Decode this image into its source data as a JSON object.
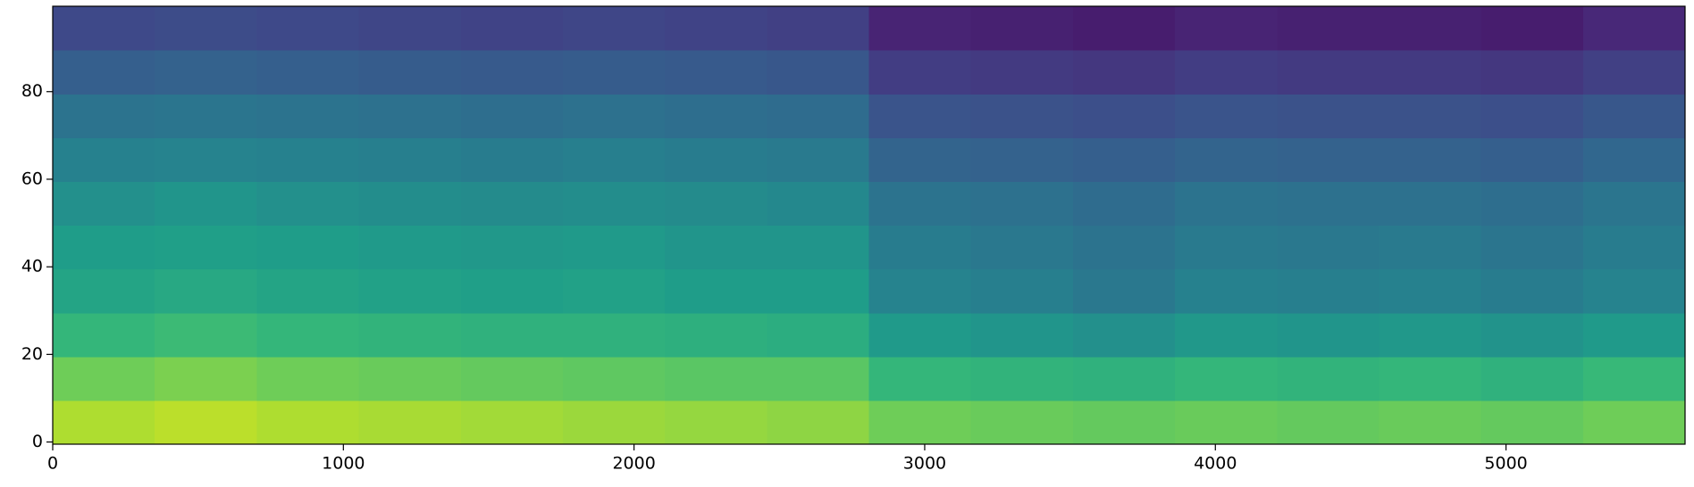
{
  "chart_data": {
    "type": "heatmap",
    "colormap": "viridis",
    "xlim": [
      0,
      5616
    ],
    "ylim": [
      -0.5,
      99.5
    ],
    "xticks": [
      0,
      1000,
      2000,
      3000,
      4000,
      5000
    ],
    "yticks": [
      0,
      20,
      40,
      60,
      80
    ],
    "z": [
      [
        0.88,
        0.9,
        0.88,
        0.87,
        0.86,
        0.85,
        0.84,
        0.83,
        0.78,
        0.77,
        0.76,
        0.77,
        0.76,
        0.77,
        0.76,
        0.78
      ],
      [
        0.78,
        0.8,
        0.78,
        0.77,
        0.76,
        0.75,
        0.74,
        0.74,
        0.66,
        0.65,
        0.64,
        0.66,
        0.65,
        0.66,
        0.64,
        0.67
      ],
      [
        0.66,
        0.68,
        0.66,
        0.65,
        0.64,
        0.64,
        0.63,
        0.62,
        0.54,
        0.52,
        0.5,
        0.53,
        0.52,
        0.53,
        0.51,
        0.54
      ],
      [
        0.58,
        0.6,
        0.58,
        0.57,
        0.56,
        0.57,
        0.55,
        0.55,
        0.45,
        0.43,
        0.4,
        0.44,
        0.43,
        0.44,
        0.42,
        0.45
      ],
      [
        0.55,
        0.56,
        0.55,
        0.54,
        0.53,
        0.54,
        0.52,
        0.52,
        0.42,
        0.4,
        0.38,
        0.41,
        0.4,
        0.41,
        0.39,
        0.42
      ],
      [
        0.5,
        0.52,
        0.5,
        0.49,
        0.48,
        0.49,
        0.48,
        0.47,
        0.38,
        0.37,
        0.35,
        0.38,
        0.37,
        0.37,
        0.36,
        0.39
      ],
      [
        0.44,
        0.45,
        0.44,
        0.43,
        0.42,
        0.43,
        0.42,
        0.41,
        0.32,
        0.31,
        0.3,
        0.32,
        0.31,
        0.31,
        0.3,
        0.33
      ],
      [
        0.38,
        0.39,
        0.38,
        0.37,
        0.36,
        0.37,
        0.36,
        0.35,
        0.26,
        0.25,
        0.24,
        0.26,
        0.25,
        0.25,
        0.24,
        0.27
      ],
      [
        0.3,
        0.31,
        0.3,
        0.29,
        0.28,
        0.29,
        0.28,
        0.27,
        0.18,
        0.17,
        0.16,
        0.18,
        0.17,
        0.17,
        0.16,
        0.19
      ],
      [
        0.22,
        0.23,
        0.22,
        0.21,
        0.2,
        0.21,
        0.2,
        0.19,
        0.1,
        0.09,
        0.08,
        0.1,
        0.09,
        0.09,
        0.08,
        0.11
      ]
    ]
  }
}
